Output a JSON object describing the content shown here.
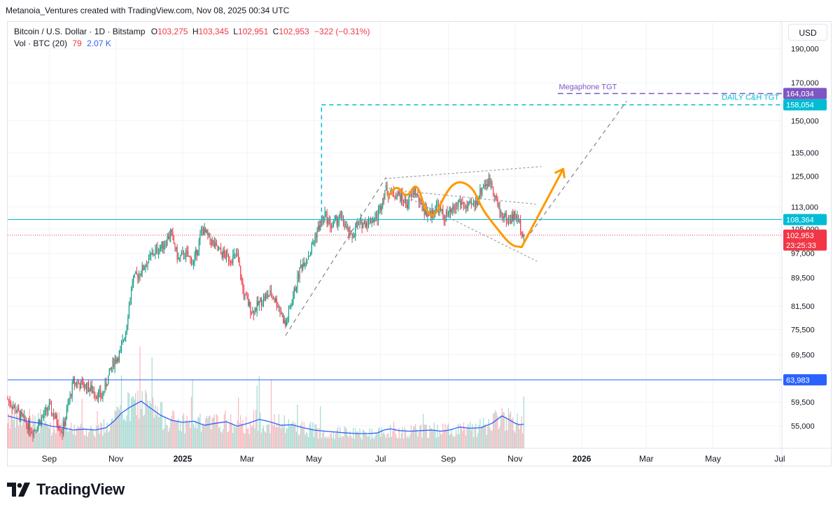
{
  "header": {
    "text": "Metanoia_Ventures created with TradingView.com, Nov 08, 2025 00:34 UTC"
  },
  "legend": {
    "title": "Bitcoin / U.S. Dollar · 1D · Bitstamp",
    "o_label": "O",
    "o": "103,275",
    "h_label": "H",
    "h": "103,345",
    "l_label": "L",
    "l": "102,951",
    "c_label": "C",
    "c": "102,953",
    "change": "−322 (−0.31%)",
    "vol_label": "Vol · BTC (20)",
    "vol_value": "79",
    "vol_ma": "2.07 K"
  },
  "currency_button": "USD",
  "brand": "TradingView",
  "colors": {
    "up": "#089981",
    "down": "#f23645",
    "accent_cyan": "#00bcd4",
    "megaphone": "#7e57c2",
    "arrow": "#ff9800",
    "vol_ma": "#2962ff"
  },
  "chart_data": {
    "type": "candlestick",
    "symbol": "BTCUSD",
    "interval": "1D",
    "y_scale": "log",
    "ylim": [
      50000,
      205000
    ],
    "y_ticks": [
      {
        "value": 190000,
        "label": "190,000"
      },
      {
        "value": 170000,
        "label": "170,000"
      },
      {
        "value": 150000,
        "label": "150,000"
      },
      {
        "value": 135000,
        "label": "135,000"
      },
      {
        "value": 125000,
        "label": "125,000"
      },
      {
        "value": 113000,
        "label": "113,000"
      },
      {
        "value": 105000,
        "label": "105,000"
      },
      {
        "value": 97000,
        "label": "97,000"
      },
      {
        "value": 89500,
        "label": "89,500"
      },
      {
        "value": 81500,
        "label": "81,500"
      },
      {
        "value": 75500,
        "label": "75,500"
      },
      {
        "value": 69500,
        "label": "69,500"
      },
      {
        "value": 59500,
        "label": "59,500"
      },
      {
        "value": 55000,
        "label": "55,000"
      }
    ],
    "x_ticks": [
      {
        "label": "Sep",
        "day": 0,
        "bold": false
      },
      {
        "label": "Nov",
        "day": 61,
        "bold": false
      },
      {
        "label": "2025",
        "day": 122,
        "bold": true
      },
      {
        "label": "Mar",
        "day": 181,
        "bold": false
      },
      {
        "label": "May",
        "day": 242,
        "bold": false
      },
      {
        "label": "Jul",
        "day": 303,
        "bold": false
      },
      {
        "label": "Sep",
        "day": 365,
        "bold": false
      },
      {
        "label": "Nov",
        "day": 426,
        "bold": false
      },
      {
        "label": "2026",
        "day": 487,
        "bold": true
      },
      {
        "label": "Mar",
        "day": 546,
        "bold": false
      },
      {
        "label": "May",
        "day": 607,
        "bold": false
      },
      {
        "label": "Jul",
        "day": 668,
        "bold": false
      }
    ],
    "x_range_days": [
      -38,
      670
    ],
    "price_path": [
      [
        -38,
        60000
      ],
      [
        -25,
        56500
      ],
      [
        -15,
        54000
      ],
      [
        0,
        58500
      ],
      [
        12,
        54000
      ],
      [
        22,
        63500
      ],
      [
        35,
        62500
      ],
      [
        48,
        60500
      ],
      [
        58,
        67500
      ],
      [
        65,
        70000
      ],
      [
        70,
        75500
      ],
      [
        76,
        88500
      ],
      [
        84,
        91500
      ],
      [
        95,
        97000
      ],
      [
        105,
        100000
      ],
      [
        111,
        104000
      ],
      [
        118,
        95000
      ],
      [
        124,
        97000
      ],
      [
        132,
        94000
      ],
      [
        140,
        105000
      ],
      [
        146,
        102000
      ],
      [
        155,
        97500
      ],
      [
        165,
        95500
      ],
      [
        172,
        96000
      ],
      [
        178,
        84500
      ],
      [
        186,
        80000
      ],
      [
        195,
        83500
      ],
      [
        203,
        85000
      ],
      [
        210,
        81500
      ],
      [
        216,
        76500
      ],
      [
        222,
        83000
      ],
      [
        230,
        93000
      ],
      [
        238,
        97000
      ],
      [
        245,
        104500
      ],
      [
        252,
        110000
      ],
      [
        258,
        106000
      ],
      [
        266,
        109500
      ],
      [
        276,
        102000
      ],
      [
        282,
        106500
      ],
      [
        293,
        108000
      ],
      [
        300,
        109500
      ],
      [
        307,
        119500
      ],
      [
        313,
        118000
      ],
      [
        320,
        117500
      ],
      [
        327,
        114000
      ],
      [
        334,
        119500
      ],
      [
        340,
        113500
      ],
      [
        348,
        110000
      ],
      [
        355,
        113500
      ],
      [
        361,
        109000
      ],
      [
        368,
        111000
      ],
      [
        375,
        115000
      ],
      [
        382,
        112500
      ],
      [
        390,
        114500
      ],
      [
        397,
        121500
      ],
      [
        404,
        123000
      ],
      [
        412,
        111000
      ],
      [
        420,
        108000
      ],
      [
        426,
        110000
      ],
      [
        430,
        107000
      ],
      [
        434,
        102950
      ]
    ],
    "volume_ma": [
      [
        -38,
        110
      ],
      [
        -28,
        100
      ],
      [
        -18,
        90
      ],
      [
        -8,
        85
      ],
      [
        2,
        75
      ],
      [
        12,
        70
      ],
      [
        22,
        62
      ],
      [
        32,
        65
      ],
      [
        42,
        62
      ],
      [
        52,
        70
      ],
      [
        60,
        95
      ],
      [
        66,
        120
      ],
      [
        74,
        140
      ],
      [
        84,
        160
      ],
      [
        92,
        138
      ],
      [
        102,
        112
      ],
      [
        112,
        95
      ],
      [
        122,
        88
      ],
      [
        132,
        92
      ],
      [
        142,
        78
      ],
      [
        152,
        85
      ],
      [
        162,
        90
      ],
      [
        172,
        75
      ],
      [
        182,
        85
      ],
      [
        192,
        98
      ],
      [
        202,
        90
      ],
      [
        212,
        78
      ],
      [
        222,
        80
      ],
      [
        232,
        70
      ],
      [
        242,
        62
      ],
      [
        252,
        58
      ],
      [
        262,
        55
      ],
      [
        272,
        52
      ],
      [
        282,
        50
      ],
      [
        292,
        50
      ],
      [
        300,
        52
      ],
      [
        306,
        62
      ],
      [
        312,
        66
      ],
      [
        320,
        60
      ],
      [
        330,
        58
      ],
      [
        340,
        60
      ],
      [
        350,
        62
      ],
      [
        358,
        58
      ],
      [
        366,
        62
      ],
      [
        375,
        72
      ],
      [
        385,
        68
      ],
      [
        395,
        70
      ],
      [
        405,
        85
      ],
      [
        414,
        110
      ],
      [
        420,
        98
      ],
      [
        426,
        85
      ],
      [
        430,
        80
      ],
      [
        434,
        82
      ]
    ],
    "horizontal_levels": [
      {
        "label": "108,364",
        "value": 108364,
        "color": "#00bcd4",
        "style": "solid"
      },
      {
        "label": "63,983",
        "value": 63983,
        "color": "#2962ff",
        "style": "solid"
      },
      {
        "label": "102,953",
        "value": 102953,
        "color": "#f23645",
        "style": "dotted",
        "countdown": "23:25:33"
      }
    ],
    "targets": [
      {
        "label": "Megaphone TGT",
        "value": 164034,
        "value_label": "164,034",
        "color": "#7e57c2"
      },
      {
        "label": "DAILY C&H TGT",
        "value": 158054,
        "value_label": "158,054",
        "color": "#00bcd4"
      }
    ],
    "annotations": [
      {
        "type": "trendline",
        "from": [
          216,
          74000
        ],
        "to": [
          308,
          124500
        ],
        "style": "dashed"
      },
      {
        "type": "trendline",
        "from": [
          436,
          101500
        ],
        "to": [
          528,
          160000
        ],
        "style": "dashed"
      },
      {
        "type": "megaphone_upper",
        "from": [
          307,
          124000
        ],
        "to": [
          450,
          129000
        ],
        "style": "dashed"
      },
      {
        "type": "megaphone_lower",
        "from": [
          307,
          121000
        ],
        "to": [
          446,
          94500
        ],
        "style": "dashed"
      },
      {
        "type": "megaphone_mid",
        "from": [
          325,
          119000
        ],
        "to": [
          445,
          114000
        ],
        "style": "dashed"
      },
      {
        "type": "measured_move",
        "day": 249,
        "from": 108364,
        "to": 158054,
        "style": "dashed"
      },
      {
        "type": "arrow_projection",
        "from": [
          432,
          99000
        ],
        "to": [
          470,
          128000
        ]
      },
      {
        "type": "cup_and_handle_curve",
        "points": [
          [
            310,
            117000
          ],
          [
            318,
            121500
          ],
          [
            327,
            116000
          ],
          [
            336,
            123000
          ],
          [
            344,
            111500
          ],
          [
            352,
            109000
          ],
          [
            360,
            116000
          ],
          [
            368,
            121500
          ],
          [
            377,
            123000
          ],
          [
            388,
            120000
          ],
          [
            396,
            112000
          ],
          [
            408,
            106000
          ],
          [
            422,
            99500
          ],
          [
            432,
            99000
          ]
        ]
      }
    ]
  }
}
